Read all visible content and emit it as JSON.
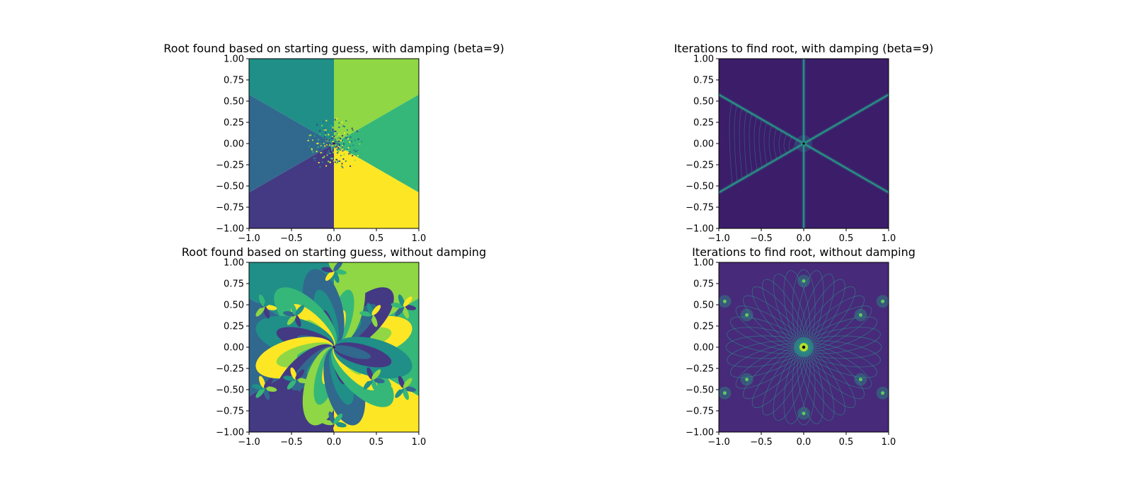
{
  "chart_data": [
    {
      "type": "heatmap",
      "title": "Root found based on starting guess, with damping (beta=9)",
      "xlabel": "",
      "ylabel": "",
      "xlim": [
        -1.0,
        1.0
      ],
      "ylim": [
        -1.0,
        1.0
      ],
      "xticks": [
        "−1.0",
        "−0.5",
        "0.0",
        "0.5",
        "1.0"
      ],
      "yticks": [
        "1.00",
        "0.75",
        "0.50",
        "0.25",
        "0.00",
        "−0.25",
        "−0.50",
        "−0.75",
        "−1.00"
      ],
      "colormap": "viridis",
      "content": "basins-damped",
      "colors": {
        "a": "#1f8f88",
        "b": "#8fd744",
        "c": "#31688e",
        "d": "#35b779",
        "e": "#443983",
        "f": "#fde725",
        "bg": "#440154"
      }
    },
    {
      "type": "heatmap",
      "title": "Iterations to find root, with damping (beta=9)",
      "xlabel": "",
      "ylabel": "",
      "xlim": [
        -1.0,
        1.0
      ],
      "ylim": [
        -1.0,
        1.0
      ],
      "xticks": [
        "−1.0",
        "−0.5",
        "0.0",
        "0.5",
        "1.0"
      ],
      "yticks": [
        "1.00",
        "0.75",
        "0.50",
        "0.25",
        "0.00",
        "−0.25",
        "−0.50",
        "−0.75",
        "−1.00"
      ],
      "colormap": "viridis",
      "content": "iterations-damped",
      "colors": {
        "bg": "#3b1d6a",
        "lines": "#2a9d8f",
        "glow": "#22a884"
      }
    },
    {
      "type": "heatmap",
      "title": "Root found based on starting guess, without damping",
      "xlabel": "",
      "ylabel": "",
      "xlim": [
        -1.0,
        1.0
      ],
      "ylim": [
        -1.0,
        1.0
      ],
      "xticks": [
        "−1.0",
        "−0.5",
        "0.0",
        "0.5",
        "1.0"
      ],
      "yticks": [
        "1.00",
        "0.75",
        "0.50",
        "0.25",
        "0.00",
        "−0.25",
        "−0.50",
        "−0.75",
        "−1.00"
      ],
      "colormap": "viridis",
      "content": "basins-undamped",
      "colors": {
        "a": "#1f8f88",
        "b": "#8fd744",
        "c": "#31688e",
        "d": "#35b779",
        "e": "#443983",
        "f": "#fde725",
        "bg": "#440154"
      }
    },
    {
      "type": "heatmap",
      "title": "Iterations to find root, without damping",
      "xlabel": "",
      "ylabel": "",
      "xlim": [
        -1.0,
        1.0
      ],
      "ylim": [
        -1.0,
        1.0
      ],
      "xticks": [
        "−1.0",
        "−0.5",
        "0.0",
        "0.5",
        "1.0"
      ],
      "yticks": [
        "1.00",
        "0.75",
        "0.50",
        "0.25",
        "0.00",
        "−0.25",
        "−0.50",
        "−0.75",
        "−1.00"
      ],
      "colormap": "viridis",
      "content": "iterations-undamped",
      "colors": {
        "bg": "#472a7a",
        "lines": "#2c8f8c",
        "glow": "#22a884"
      }
    }
  ]
}
